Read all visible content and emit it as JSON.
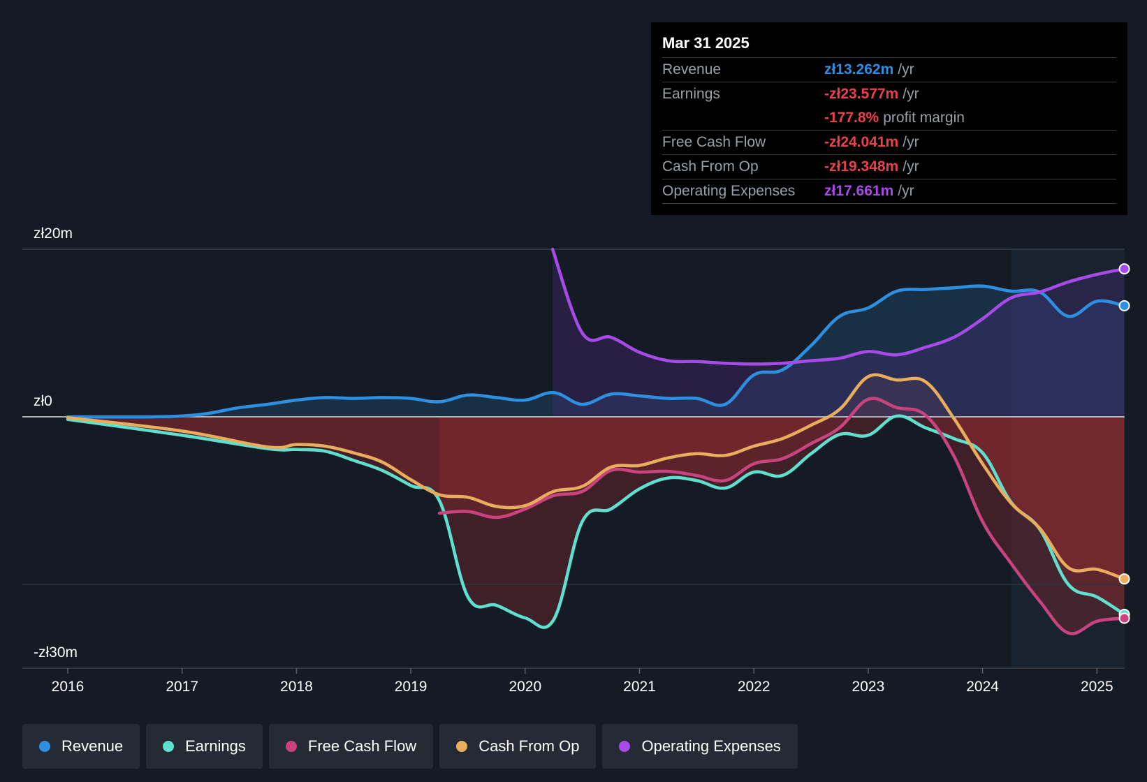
{
  "tooltip": {
    "date": "Mar 31 2025",
    "rows": [
      {
        "label": "Revenue",
        "value": "zł13.262m",
        "unit": "/yr",
        "color": "#2e8fe0"
      },
      {
        "label": "Earnings",
        "value": "-zł23.577m",
        "unit": "/yr",
        "color": "#e8424c"
      },
      {
        "label": "",
        "value": "-177.8%",
        "unit": "profit margin",
        "color": "#e8424c"
      },
      {
        "label": "Free Cash Flow",
        "value": "-zł24.041m",
        "unit": "/yr",
        "color": "#e8424c"
      },
      {
        "label": "Cash From Op",
        "value": "-zł19.348m",
        "unit": "/yr",
        "color": "#e8424c"
      },
      {
        "label": "Operating Expenses",
        "value": "zł17.661m",
        "unit": "/yr",
        "color": "#a64ae8"
      }
    ]
  },
  "legend": [
    {
      "label": "Revenue",
      "color": "#2e8fe0"
    },
    {
      "label": "Earnings",
      "color": "#5fe0cf"
    },
    {
      "label": "Free Cash Flow",
      "color": "#c9437f"
    },
    {
      "label": "Cash From Op",
      "color": "#e8ae5e"
    },
    {
      "label": "Operating Expenses",
      "color": "#a64ae8"
    }
  ],
  "chart_data": {
    "type": "line",
    "y_ticks": [
      {
        "value": 20,
        "label": "zł20m"
      },
      {
        "value": 0,
        "label": "zł0"
      },
      {
        "value": -30,
        "label": "-zł30m"
      }
    ],
    "x_ticks": [
      {
        "value": 2016,
        "label": "2016"
      },
      {
        "value": 2017,
        "label": "2017"
      },
      {
        "value": 2018,
        "label": "2018"
      },
      {
        "value": 2019,
        "label": "2019"
      },
      {
        "value": 2020,
        "label": "2020"
      },
      {
        "value": 2021,
        "label": "2021"
      },
      {
        "value": 2022,
        "label": "2022"
      },
      {
        "value": 2023,
        "label": "2023"
      },
      {
        "value": 2024,
        "label": "2024"
      },
      {
        "value": 2025,
        "label": "2025"
      }
    ],
    "xlim": [
      2015.62,
      2025.24
    ],
    "ylim": [
      -30,
      20
    ],
    "highlight_range": [
      2024.25,
      2025.24
    ],
    "series": [
      {
        "name": "Revenue",
        "color": "#2e8fe0",
        "points": [
          [
            2016.0,
            0.0
          ],
          [
            2017.0,
            0.1
          ],
          [
            2017.5,
            1.1
          ],
          [
            2017.75,
            1.5
          ],
          [
            2018.0,
            2.0
          ],
          [
            2018.25,
            2.3
          ],
          [
            2018.5,
            2.2
          ],
          [
            2018.75,
            2.3
          ],
          [
            2019.0,
            2.2
          ],
          [
            2019.25,
            1.8
          ],
          [
            2019.5,
            2.6
          ],
          [
            2019.75,
            2.3
          ],
          [
            2020.0,
            2.0
          ],
          [
            2020.25,
            2.9
          ],
          [
            2020.5,
            1.5
          ],
          [
            2020.75,
            2.7
          ],
          [
            2021.0,
            2.5
          ],
          [
            2021.25,
            2.2
          ],
          [
            2021.5,
            2.2
          ],
          [
            2021.75,
            1.5
          ],
          [
            2022.0,
            5.0
          ],
          [
            2022.25,
            5.6
          ],
          [
            2022.5,
            8.5
          ],
          [
            2022.75,
            12.0
          ],
          [
            2023.0,
            13.0
          ],
          [
            2023.25,
            15.0
          ],
          [
            2023.5,
            15.2
          ],
          [
            2023.75,
            15.4
          ],
          [
            2024.0,
            15.6
          ],
          [
            2024.25,
            15.0
          ],
          [
            2024.5,
            14.9
          ],
          [
            2024.75,
            12.0
          ],
          [
            2025.0,
            13.8
          ],
          [
            2025.24,
            13.262
          ]
        ]
      },
      {
        "name": "Earnings",
        "color": "#5fe0cf",
        "points": [
          [
            2016.0,
            -0.3
          ],
          [
            2017.0,
            -2.2
          ],
          [
            2017.75,
            -3.8
          ],
          [
            2018.0,
            -3.9
          ],
          [
            2018.25,
            -4.1
          ],
          [
            2018.5,
            -5.2
          ],
          [
            2018.75,
            -6.4
          ],
          [
            2019.0,
            -8.2
          ],
          [
            2019.25,
            -10.0
          ],
          [
            2019.5,
            -21.5
          ],
          [
            2019.75,
            -22.5
          ],
          [
            2020.0,
            -24.0
          ],
          [
            2020.25,
            -24.2
          ],
          [
            2020.5,
            -12.5
          ],
          [
            2020.75,
            -11.0
          ],
          [
            2021.0,
            -8.6
          ],
          [
            2021.25,
            -7.3
          ],
          [
            2021.5,
            -7.6
          ],
          [
            2021.75,
            -8.5
          ],
          [
            2022.0,
            -6.6
          ],
          [
            2022.25,
            -7.0
          ],
          [
            2022.5,
            -4.4
          ],
          [
            2022.75,
            -2.1
          ],
          [
            2023.0,
            -2.2
          ],
          [
            2023.25,
            0.1
          ],
          [
            2023.5,
            -1.3
          ],
          [
            2023.75,
            -2.6
          ],
          [
            2024.0,
            -4.3
          ],
          [
            2024.25,
            -10.2
          ],
          [
            2024.5,
            -13.4
          ],
          [
            2024.75,
            -20.0
          ],
          [
            2025.0,
            -21.5
          ],
          [
            2025.24,
            -23.577
          ]
        ]
      },
      {
        "name": "Free Cash Flow",
        "color": "#c9437f",
        "points": [
          [
            2019.25,
            -11.5
          ],
          [
            2019.5,
            -11.3
          ],
          [
            2019.75,
            -12.0
          ],
          [
            2020.0,
            -11.0
          ],
          [
            2020.25,
            -9.4
          ],
          [
            2020.5,
            -8.9
          ],
          [
            2020.75,
            -6.4
          ],
          [
            2021.0,
            -6.6
          ],
          [
            2021.25,
            -6.5
          ],
          [
            2021.5,
            -7.0
          ],
          [
            2021.75,
            -7.6
          ],
          [
            2022.0,
            -5.6
          ],
          [
            2022.25,
            -5.0
          ],
          [
            2022.5,
            -3.2
          ],
          [
            2022.75,
            -1.3
          ],
          [
            2023.0,
            2.1
          ],
          [
            2023.25,
            1.1
          ],
          [
            2023.5,
            0.2
          ],
          [
            2023.75,
            -4.7
          ],
          [
            2024.0,
            -12.5
          ],
          [
            2024.25,
            -17.5
          ],
          [
            2024.5,
            -22.0
          ],
          [
            2024.75,
            -25.8
          ],
          [
            2025.0,
            -24.4
          ],
          [
            2025.24,
            -24.041
          ]
        ]
      },
      {
        "name": "Cash From Op",
        "color": "#e8ae5e",
        "points": [
          [
            2016.0,
            -0.1
          ],
          [
            2017.0,
            -1.7
          ],
          [
            2017.75,
            -3.6
          ],
          [
            2018.0,
            -3.3
          ],
          [
            2018.25,
            -3.5
          ],
          [
            2018.5,
            -4.3
          ],
          [
            2018.75,
            -5.4
          ],
          [
            2019.0,
            -7.5
          ],
          [
            2019.25,
            -9.3
          ],
          [
            2019.5,
            -9.6
          ],
          [
            2019.75,
            -10.7
          ],
          [
            2020.0,
            -10.6
          ],
          [
            2020.25,
            -8.9
          ],
          [
            2020.5,
            -8.3
          ],
          [
            2020.75,
            -6.0
          ],
          [
            2021.0,
            -5.8
          ],
          [
            2021.25,
            -4.9
          ],
          [
            2021.5,
            -4.4
          ],
          [
            2021.75,
            -4.6
          ],
          [
            2022.0,
            -3.5
          ],
          [
            2022.25,
            -2.6
          ],
          [
            2022.5,
            -1.0
          ],
          [
            2022.75,
            0.9
          ],
          [
            2023.0,
            4.8
          ],
          [
            2023.25,
            4.4
          ],
          [
            2023.5,
            4.2
          ],
          [
            2023.75,
            -0.2
          ],
          [
            2024.0,
            -5.6
          ],
          [
            2024.25,
            -10.3
          ],
          [
            2024.5,
            -13.3
          ],
          [
            2024.75,
            -18.0
          ],
          [
            2025.0,
            -18.2
          ],
          [
            2025.24,
            -19.348
          ]
        ]
      },
      {
        "name": "Operating Expenses",
        "color": "#a64ae8",
        "points": [
          [
            2020.24,
            20.0
          ],
          [
            2020.5,
            10.0
          ],
          [
            2020.75,
            9.5
          ],
          [
            2021.0,
            7.7
          ],
          [
            2021.25,
            6.7
          ],
          [
            2021.5,
            6.6
          ],
          [
            2021.75,
            6.4
          ],
          [
            2022.0,
            6.3
          ],
          [
            2022.25,
            6.4
          ],
          [
            2022.5,
            6.7
          ],
          [
            2022.75,
            7.0
          ],
          [
            2023.0,
            7.8
          ],
          [
            2023.25,
            7.4
          ],
          [
            2023.5,
            8.3
          ],
          [
            2023.75,
            9.5
          ],
          [
            2024.0,
            11.7
          ],
          [
            2024.25,
            14.2
          ],
          [
            2024.5,
            14.9
          ],
          [
            2024.75,
            16.1
          ],
          [
            2025.0,
            17.0
          ],
          [
            2025.24,
            17.661
          ]
        ]
      }
    ]
  }
}
